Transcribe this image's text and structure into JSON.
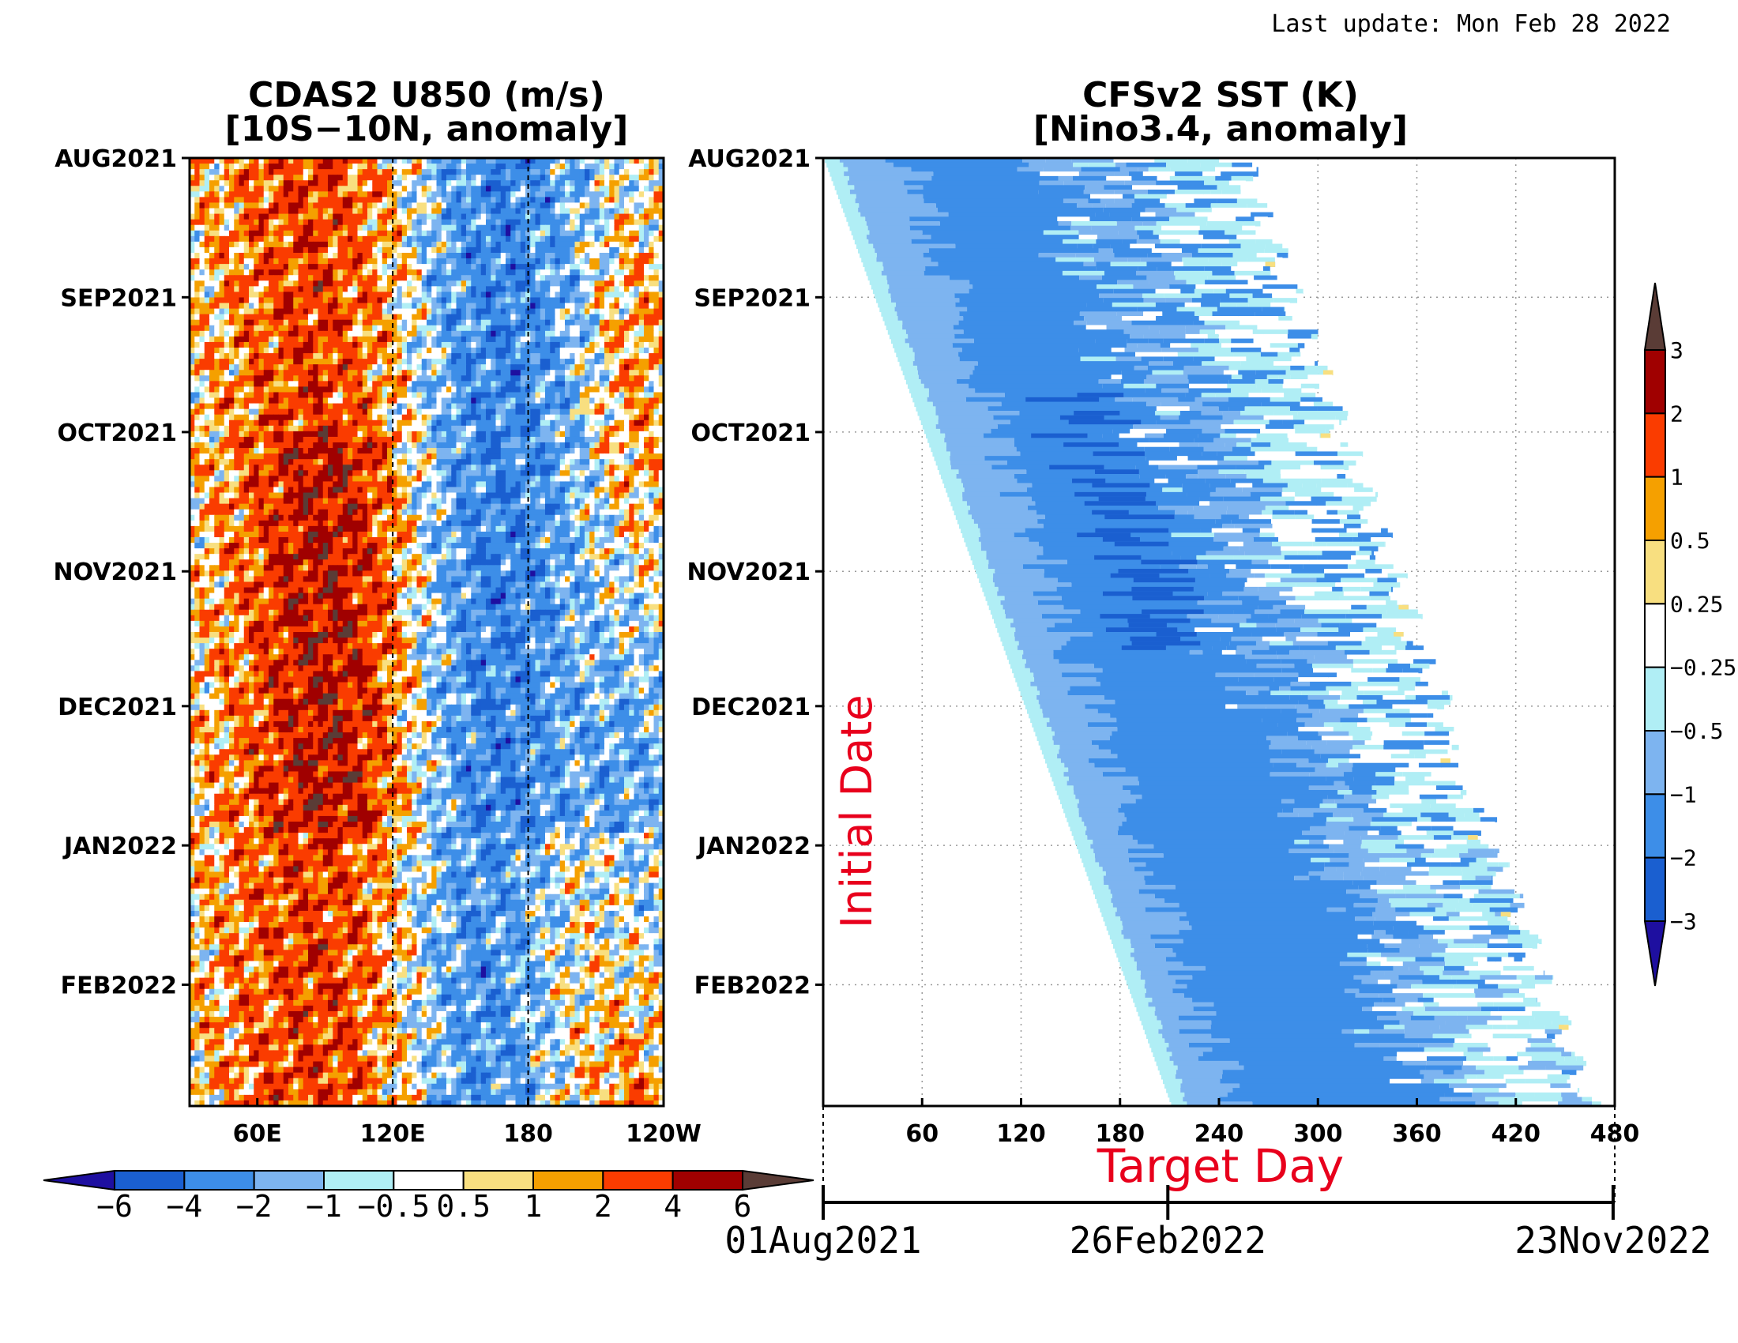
{
  "header": {
    "last_update": "Last update: Mon Feb 28 2022"
  },
  "chart_data": [
    {
      "type": "heatmap",
      "title": "CDAS2 U850 (m/s)",
      "subtitle": "[10S−10N, anomaly]",
      "x_ticks": [
        "60E",
        "120E",
        "180",
        "120W"
      ],
      "x_tick_values": [
        60,
        120,
        180,
        240
      ],
      "xlim": [
        30,
        240
      ],
      "y_ticks": [
        "AUG2021",
        "SEP2021",
        "OCT2021",
        "NOV2021",
        "DEC2021",
        "JAN2022",
        "FEB2022"
      ],
      "y_tick_days": [
        0,
        31,
        61,
        92,
        122,
        153,
        184
      ],
      "ylim_days": [
        0,
        211
      ],
      "reference_lines": [
        120,
        180
      ],
      "colorbar": {
        "orientation": "horizontal",
        "labels": [
          "−6",
          "−4",
          "−2",
          "−1",
          "−0.5",
          "0.5",
          "1",
          "2",
          "4",
          "6"
        ],
        "colors": [
          "#1e0fa0",
          "#1a5fd0",
          "#3d8ee8",
          "#7db4f0",
          "#b0eef5",
          "#ffffff",
          "#f8df80",
          "#f5a000",
          "#fa3c00",
          "#a00000",
          "#5a3c36"
        ]
      }
    },
    {
      "type": "heatmap",
      "title": "CFSv2 SST (K)",
      "subtitle": "[Nino3.4, anomaly]",
      "xlabel": "Target Day",
      "ylabel": "Initial Date",
      "x_ticks": [
        "60",
        "120",
        "180",
        "240",
        "300",
        "360",
        "420",
        "480"
      ],
      "x_tick_values": [
        60,
        120,
        180,
        240,
        300,
        360,
        420,
        480
      ],
      "xlim": [
        0,
        480
      ],
      "y_ticks": [
        "AUG2021",
        "SEP2021",
        "OCT2021",
        "NOV2021",
        "DEC2021",
        "JAN2022",
        "FEB2022"
      ],
      "y_tick_days": [
        0,
        31,
        61,
        92,
        122,
        153,
        184
      ],
      "ylim_days": [
        0,
        211
      ],
      "grid": true,
      "date_axis": [
        "01Aug2021",
        "26Feb2022",
        "23Nov2022"
      ],
      "date_axis_days": [
        0,
        209,
        479
      ],
      "colorbar": {
        "orientation": "vertical",
        "labels": [
          "3",
          "2",
          "1",
          "0.5",
          "0.25",
          "−0.25",
          "−0.5",
          "−1",
          "−2",
          "−3"
        ],
        "colors": [
          "#5a3c36",
          "#a00000",
          "#fa3c00",
          "#f5a000",
          "#f8df80",
          "#ffffff",
          "#b0eef5",
          "#7db4f0",
          "#3d8ee8",
          "#1a5fd0",
          "#1e0fa0"
        ]
      }
    }
  ]
}
